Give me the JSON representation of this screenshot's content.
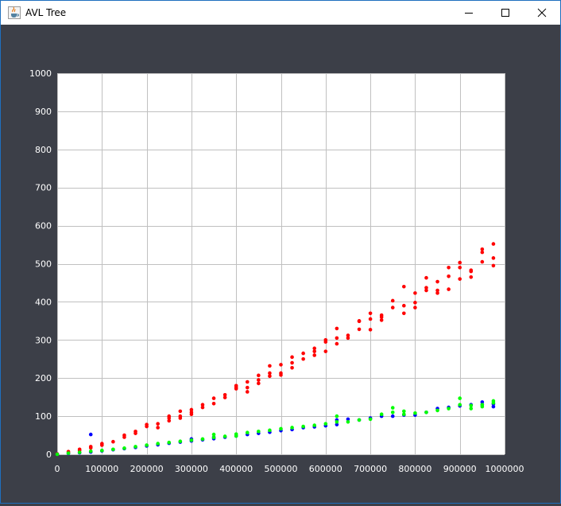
{
  "window": {
    "title": "AVL Tree",
    "icons": {
      "app": "java-cup-icon",
      "minimize": "minimize-icon",
      "maximize": "maximize-icon",
      "close": "close-icon"
    }
  },
  "colors": {
    "plot_background": "#3c3f48",
    "area": "#ffffff",
    "grid": "#c0c0c0",
    "tick_text": "#ffffff"
  },
  "chart_data": {
    "type": "scatter",
    "title": "",
    "xlabel": "",
    "ylabel": "",
    "xlim": [
      0,
      1000000
    ],
    "ylim": [
      0,
      1000
    ],
    "xticks": [
      0,
      100000,
      200000,
      300000,
      400000,
      500000,
      600000,
      700000,
      800000,
      900000,
      1000000
    ],
    "xtick_labels": [
      "0",
      "100000",
      "200000",
      "300000",
      "400000",
      "500000",
      "600000",
      "700000",
      "800000",
      "900000",
      "1000000"
    ],
    "yticks": [
      0,
      100,
      200,
      300,
      400,
      500,
      600,
      700,
      800,
      900,
      1000
    ],
    "ytick_labels": [
      "0",
      "100",
      "200",
      "300",
      "400",
      "500",
      "600",
      "700",
      "800",
      "900",
      "1000"
    ],
    "grid": true,
    "legend": false,
    "series": [
      {
        "color": "#ff0000",
        "x": [
          0,
          0,
          25000,
          25000,
          50000,
          50000,
          75000,
          75000,
          100000,
          100000,
          125000,
          150000,
          150000,
          175000,
          175000,
          200000,
          200000,
          225000,
          225000,
          250000,
          250000,
          250000,
          275000,
          275000,
          275000,
          300000,
          300000,
          300000,
          325000,
          325000,
          350000,
          350000,
          375000,
          375000,
          400000,
          400000,
          400000,
          425000,
          425000,
          425000,
          450000,
          450000,
          450000,
          475000,
          475000,
          475000,
          500000,
          500000,
          500000,
          525000,
          525000,
          525000,
          550000,
          550000,
          575000,
          575000,
          575000,
          600000,
          600000,
          600000,
          625000,
          625000,
          625000,
          650000,
          650000,
          675000,
          675000,
          675000,
          700000,
          700000,
          700000,
          725000,
          725000,
          725000,
          750000,
          750000,
          775000,
          775000,
          775000,
          800000,
          800000,
          800000,
          825000,
          825000,
          825000,
          850000,
          850000,
          850000,
          875000,
          875000,
          875000,
          900000,
          900000,
          900000,
          925000,
          925000,
          925000,
          950000,
          950000,
          950000,
          975000,
          975000,
          975000
        ],
        "y": [
          0,
          1,
          4,
          7,
          10,
          13,
          17,
          20,
          24,
          28,
          33,
          45,
          50,
          55,
          60,
          73,
          78,
          70,
          80,
          88,
          95,
          100,
          95,
          100,
          113,
          105,
          110,
          117,
          123,
          130,
          133,
          147,
          149,
          156,
          172,
          176,
          180,
          164,
          175,
          190,
          186,
          195,
          207,
          205,
          213,
          232,
          208,
          213,
          235,
          227,
          240,
          255,
          250,
          265,
          260,
          270,
          278,
          270,
          295,
          300,
          290,
          305,
          330,
          305,
          312,
          328,
          350,
          349,
          327,
          355,
          370,
          352,
          360,
          365,
          385,
          403,
          370,
          390,
          440,
          385,
          398,
          423,
          430,
          437,
          463,
          423,
          430,
          453,
          433,
          467,
          490,
          460,
          490,
          503,
          465,
          480,
          483,
          505,
          530,
          538,
          495,
          515,
          552
        ]
      },
      {
        "color": "#0000ff",
        "x": [
          0,
          25000,
          50000,
          75000,
          75000,
          100000,
          125000,
          150000,
          175000,
          200000,
          225000,
          250000,
          275000,
          300000,
          300000,
          325000,
          350000,
          350000,
          375000,
          400000,
          425000,
          450000,
          475000,
          500000,
          525000,
          550000,
          575000,
          600000,
          625000,
          625000,
          650000,
          675000,
          700000,
          725000,
          750000,
          775000,
          800000,
          825000,
          850000,
          875000,
          900000,
          925000,
          950000,
          950000,
          975000,
          975000
        ],
        "y": [
          0,
          2,
          4,
          6,
          52,
          9,
          12,
          15,
          18,
          22,
          25,
          29,
          32,
          35,
          40,
          38,
          41,
          45,
          45,
          48,
          52,
          55,
          58,
          62,
          65,
          70,
          72,
          75,
          78,
          90,
          92,
          90,
          95,
          100,
          100,
          103,
          103,
          110,
          120,
          123,
          127,
          130,
          130,
          137,
          125,
          132
        ]
      },
      {
        "color": "#00ff00",
        "x": [
          0,
          25000,
          50000,
          75000,
          100000,
          125000,
          150000,
          175000,
          200000,
          225000,
          250000,
          275000,
          300000,
          325000,
          350000,
          350000,
          375000,
          400000,
          400000,
          425000,
          450000,
          475000,
          500000,
          525000,
          550000,
          575000,
          600000,
          625000,
          625000,
          650000,
          675000,
          700000,
          725000,
          750000,
          750000,
          775000,
          775000,
          800000,
          825000,
          850000,
          875000,
          900000,
          900000,
          925000,
          925000,
          950000,
          950000,
          975000,
          975000
        ],
        "y": [
          0,
          3,
          5,
          8,
          10,
          13,
          16,
          20,
          24,
          28,
          31,
          34,
          37,
          40,
          44,
          52,
          47,
          48,
          53,
          57,
          60,
          63,
          67,
          70,
          73,
          76,
          80,
          85,
          100,
          85,
          90,
          92,
          105,
          110,
          122,
          113,
          105,
          108,
          110,
          115,
          120,
          130,
          147,
          128,
          120,
          125,
          130,
          135,
          140
        ]
      }
    ]
  }
}
